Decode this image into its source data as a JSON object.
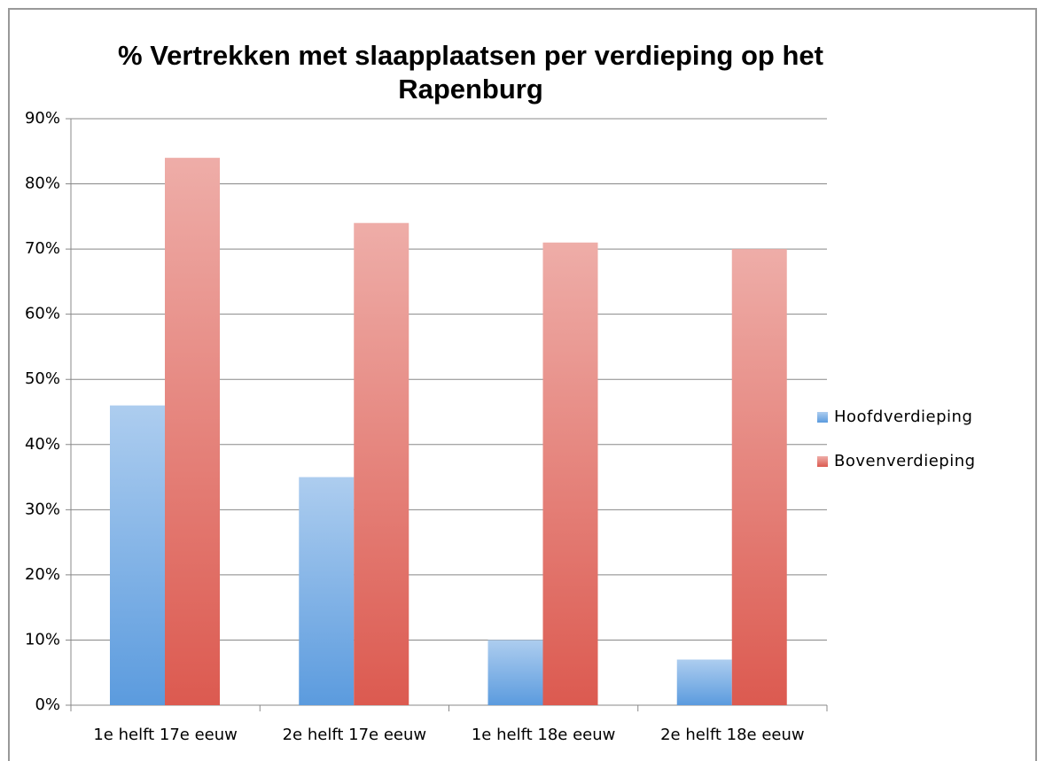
{
  "chart_data": {
    "type": "bar",
    "title": "% Vertrekken met slaapplaatsen per verdieping op het Rapenburg",
    "categories": [
      "1e helft 17e eeuw",
      "2e helft 17e eeuw",
      "1e helft 18e eeuw",
      "2e helft 18e eeuw"
    ],
    "series": [
      {
        "name": "Hoofdverdieping",
        "color": "#5b9bde",
        "values": [
          46,
          35,
          10,
          7
        ]
      },
      {
        "name": "Bovenverdieping",
        "color": "#dc5a50",
        "values": [
          84,
          74,
          71,
          70
        ]
      }
    ],
    "ylim": [
      0,
      90
    ],
    "yticks": [
      {
        "value": 0,
        "label": "0%"
      },
      {
        "value": 10,
        "label": "10%"
      },
      {
        "value": 20,
        "label": "20%"
      },
      {
        "value": 30,
        "label": "30%"
      },
      {
        "value": 40,
        "label": "40%"
      },
      {
        "value": 50,
        "label": "50%"
      },
      {
        "value": 60,
        "label": "60%"
      },
      {
        "value": 70,
        "label": "70%"
      },
      {
        "value": 80,
        "label": "80%"
      },
      {
        "value": 90,
        "label": "90%"
      }
    ],
    "grid": true,
    "legend": "right"
  }
}
